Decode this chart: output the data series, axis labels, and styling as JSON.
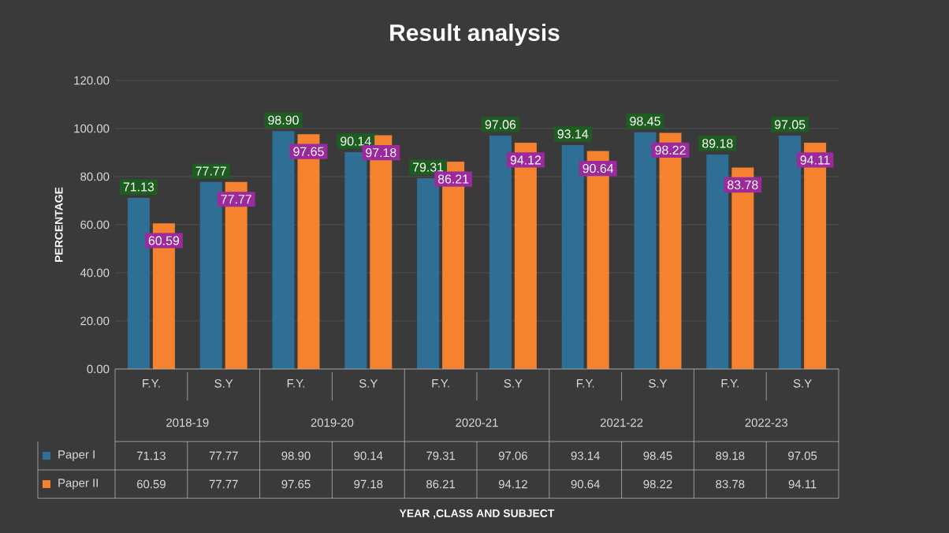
{
  "chart_data": {
    "type": "bar",
    "title": "Result analysis",
    "ylabel": "PERCENTAGE",
    "categories": [
      "F.Y.",
      "S.Y",
      "F.Y.",
      "S.Y",
      "F.Y.",
      "S.Y",
      "F.Y.",
      "S.Y",
      "F.Y.",
      "S.Y"
    ],
    "annotations": [
      "2018-19",
      "2019-20",
      "2020-21",
      "2021-22",
      "2022-23",
      "YEAR ,CLASS AND SUBJECT"
    ],
    "series": [
      {
        "name": "Paper I",
        "color": "#2f6f95",
        "values": [
          71.13,
          77.77,
          98.9,
          90.14,
          79.31,
          97.06,
          93.14,
          98.45,
          89.18,
          97.05
        ],
        "value_labels": [
          "71.13",
          "77.77",
          "98.90",
          "90.14",
          "79.31",
          "97.06",
          "93.14",
          "98.45",
          "89.18",
          "97.05"
        ]
      },
      {
        "name": "Paper II",
        "color": "#f4822f",
        "values": [
          60.59,
          77.77,
          97.65,
          97.18,
          86.21,
          94.12,
          90.64,
          98.22,
          83.78,
          94.11
        ],
        "value_labels": [
          "60.59",
          "77.77",
          "97.65",
          "97.18",
          "86.21",
          "94.12",
          "90.64",
          "98.22",
          "83.78",
          "94.11"
        ]
      }
    ],
    "ylim": [
      0,
      120
    ],
    "yticks": [
      {
        "value": 0,
        "label": "0.00"
      },
      {
        "value": 20,
        "label": "20.00"
      },
      {
        "value": 40,
        "label": "40.00"
      },
      {
        "value": 60,
        "label": "60.00"
      },
      {
        "value": 80,
        "label": "80.00"
      },
      {
        "value": 100,
        "label": "100.00"
      },
      {
        "value": 120,
        "label": "120.00"
      }
    ],
    "grid": "y",
    "legend": "bottom"
  }
}
